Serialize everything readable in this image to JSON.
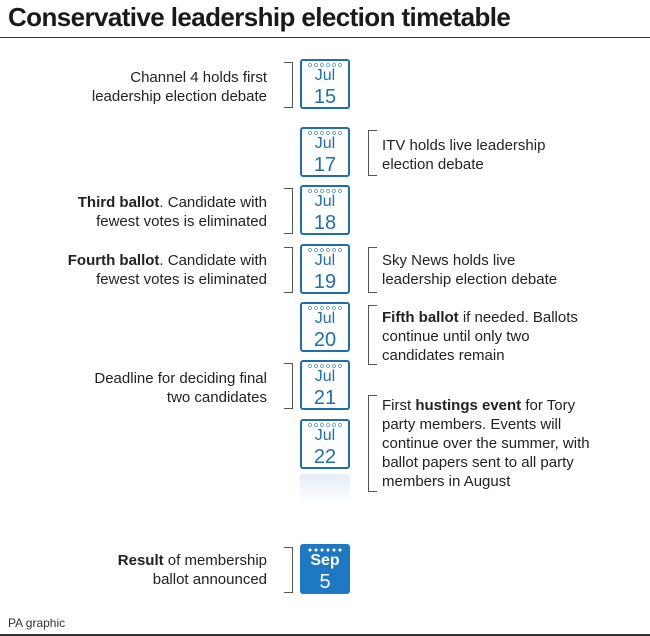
{
  "title": "Conservative leadership election timetable",
  "credit": "PA graphic",
  "calendar": [
    {
      "month": "Jul",
      "day": "15"
    },
    {
      "month": "Jul",
      "day": "17"
    },
    {
      "month": "Jul",
      "day": "18"
    },
    {
      "month": "Jul",
      "day": "19"
    },
    {
      "month": "Jul",
      "day": "20"
    },
    {
      "month": "Jul",
      "day": "21"
    },
    {
      "month": "Jul",
      "day": "22"
    },
    {
      "month": "Sep",
      "day": "5"
    }
  ],
  "notes": {
    "jul15": {
      "line1": "Channel 4 holds first",
      "line2": "leadership election debate"
    },
    "jul17": {
      "line1": "ITV holds live leadership",
      "line2": "election debate"
    },
    "jul18": {
      "bold": "Third ballot",
      "rest1": ". Candidate with",
      "line2": "fewest votes is eliminated"
    },
    "jul19_left": {
      "bold": "Fourth ballot",
      "rest1": ". Candidate with",
      "line2": "fewest votes is eliminated"
    },
    "jul19_right": {
      "line1": "Sky News holds live",
      "line2": "leadership election debate"
    },
    "jul20": {
      "bold": "Fifth ballot",
      "rest1": " if needed. Ballots",
      "line2": "continue until only two",
      "line3": "candidates remain"
    },
    "jul21": {
      "line1": "Deadline for deciding final",
      "line2": "two candidates"
    },
    "jul22": {
      "pre1": "First ",
      "bold": "hustings event",
      "rest1": " for Tory",
      "line2": "party members. Events will",
      "line3": "continue over the summer, with",
      "line4": "ballot papers sent to all party",
      "line5": "members in August"
    },
    "sep5": {
      "bold": "Result",
      "rest1": " of membership",
      "line2": "ballot announced"
    }
  },
  "colors": {
    "accent": "#1f6fb0",
    "final": "#1f78c2"
  }
}
